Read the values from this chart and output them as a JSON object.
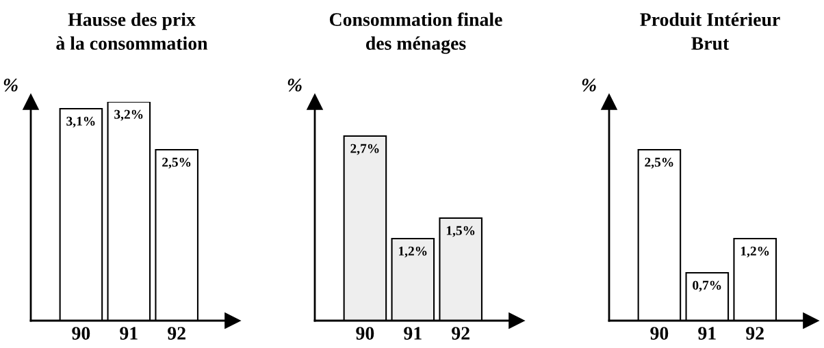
{
  "chart_data": [
    {
      "type": "bar",
      "title": "Hausse des prix\nà la consommation",
      "ylabel": "%",
      "categories": [
        "90",
        "91",
        "92"
      ],
      "values": [
        3.1,
        3.2,
        2.5
      ],
      "value_labels": [
        "3,1%",
        "3,2%",
        "2,5%"
      ],
      "color": "#ffffff",
      "ylim": [
        0,
        3.2
      ],
      "tick_labels": "x",
      "grid": false
    },
    {
      "type": "bar",
      "title": "Consommation finale\ndes ménages",
      "ylabel": "%",
      "categories": [
        "90",
        "91",
        "92"
      ],
      "values": [
        2.7,
        1.2,
        1.5
      ],
      "value_labels": [
        "2,7%",
        "1,2%",
        "1,5%"
      ],
      "color": "#eeeeee",
      "ylim": [
        0,
        3.2
      ],
      "tick_labels": "x",
      "grid": false
    },
    {
      "type": "bar",
      "title": "Produit Intérieur\nBrut",
      "ylabel": "%",
      "categories": [
        "90",
        "91",
        "92"
      ],
      "values": [
        2.5,
        0.7,
        1.2
      ],
      "value_labels": [
        "2,5%",
        "0,7%",
        "1,2%"
      ],
      "color": "#ffffff",
      "ylim": [
        0,
        3.2
      ],
      "tick_labels": "x",
      "grid": false
    }
  ]
}
